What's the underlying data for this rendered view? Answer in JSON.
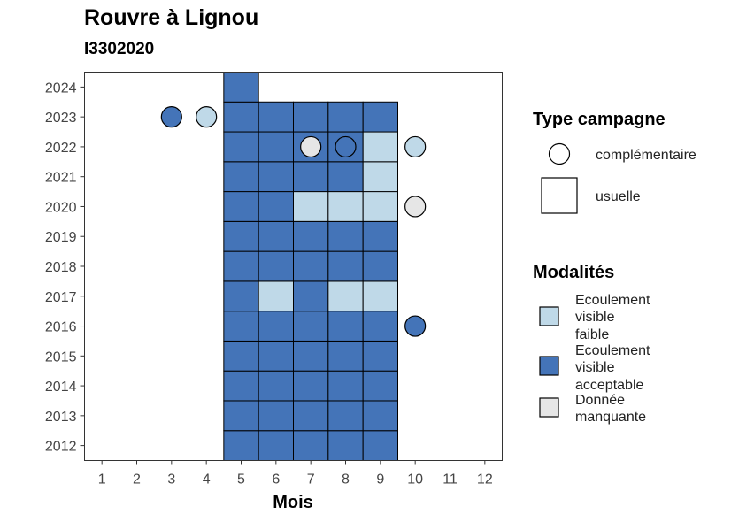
{
  "chart_data": {
    "type": "heatmap",
    "title": "Rouvre à Lignou",
    "subtitle": "I3302020",
    "xlabel": "Mois",
    "ylabel": "",
    "x_ticks": [
      1,
      2,
      3,
      4,
      5,
      6,
      7,
      8,
      9,
      10,
      11,
      12
    ],
    "y_ticks": [
      2012,
      2013,
      2014,
      2015,
      2016,
      2017,
      2018,
      2019,
      2020,
      2021,
      2022,
      2023,
      2024
    ],
    "xlim": [
      0.5,
      12.5
    ],
    "ylim": [
      2011.5,
      2024.5
    ],
    "colors": {
      "Ecoulement visible faible": "#bfd9e8",
      "Ecoulement visible acceptable": "#4474b8",
      "Donnée manquante": "#e6e6e6"
    },
    "legend_shape": {
      "title": "Type campagne",
      "entries": [
        "complémentaire",
        "usuelle"
      ]
    },
    "legend_fill": {
      "title": "Modalités",
      "entries": [
        {
          "label_lines": [
            "Ecoulement",
            "visible",
            "faible"
          ],
          "key": "Ecoulement visible faible"
        },
        {
          "label_lines": [
            "Ecoulement",
            "visible",
            "acceptable"
          ],
          "key": "Ecoulement visible acceptable"
        },
        {
          "label_lines": [
            "Donnée",
            "manquante"
          ],
          "key": "Donnée manquante"
        }
      ]
    },
    "tiles": [
      {
        "month": 5,
        "year": 2012,
        "value": "Ecoulement visible acceptable"
      },
      {
        "month": 6,
        "year": 2012,
        "value": "Ecoulement visible acceptable"
      },
      {
        "month": 7,
        "year": 2012,
        "value": "Ecoulement visible acceptable"
      },
      {
        "month": 8,
        "year": 2012,
        "value": "Ecoulement visible acceptable"
      },
      {
        "month": 9,
        "year": 2012,
        "value": "Ecoulement visible acceptable"
      },
      {
        "month": 5,
        "year": 2013,
        "value": "Ecoulement visible acceptable"
      },
      {
        "month": 6,
        "year": 2013,
        "value": "Ecoulement visible acceptable"
      },
      {
        "month": 7,
        "year": 2013,
        "value": "Ecoulement visible acceptable"
      },
      {
        "month": 8,
        "year": 2013,
        "value": "Ecoulement visible acceptable"
      },
      {
        "month": 9,
        "year": 2013,
        "value": "Ecoulement visible acceptable"
      },
      {
        "month": 5,
        "year": 2014,
        "value": "Ecoulement visible acceptable"
      },
      {
        "month": 6,
        "year": 2014,
        "value": "Ecoulement visible acceptable"
      },
      {
        "month": 7,
        "year": 2014,
        "value": "Ecoulement visible acceptable"
      },
      {
        "month": 8,
        "year": 2014,
        "value": "Ecoulement visible acceptable"
      },
      {
        "month": 9,
        "year": 2014,
        "value": "Ecoulement visible acceptable"
      },
      {
        "month": 5,
        "year": 2015,
        "value": "Ecoulement visible acceptable"
      },
      {
        "month": 6,
        "year": 2015,
        "value": "Ecoulement visible acceptable"
      },
      {
        "month": 7,
        "year": 2015,
        "value": "Ecoulement visible acceptable"
      },
      {
        "month": 8,
        "year": 2015,
        "value": "Ecoulement visible acceptable"
      },
      {
        "month": 9,
        "year": 2015,
        "value": "Ecoulement visible acceptable"
      },
      {
        "month": 5,
        "year": 2016,
        "value": "Ecoulement visible acceptable"
      },
      {
        "month": 6,
        "year": 2016,
        "value": "Ecoulement visible acceptable"
      },
      {
        "month": 7,
        "year": 2016,
        "value": "Ecoulement visible acceptable"
      },
      {
        "month": 8,
        "year": 2016,
        "value": "Ecoulement visible acceptable"
      },
      {
        "month": 9,
        "year": 2016,
        "value": "Ecoulement visible acceptable"
      },
      {
        "month": 5,
        "year": 2017,
        "value": "Ecoulement visible acceptable"
      },
      {
        "month": 6,
        "year": 2017,
        "value": "Ecoulement visible faible"
      },
      {
        "month": 7,
        "year": 2017,
        "value": "Ecoulement visible acceptable"
      },
      {
        "month": 8,
        "year": 2017,
        "value": "Ecoulement visible faible"
      },
      {
        "month": 9,
        "year": 2017,
        "value": "Ecoulement visible faible"
      },
      {
        "month": 5,
        "year": 2018,
        "value": "Ecoulement visible acceptable"
      },
      {
        "month": 6,
        "year": 2018,
        "value": "Ecoulement visible acceptable"
      },
      {
        "month": 7,
        "year": 2018,
        "value": "Ecoulement visible acceptable"
      },
      {
        "month": 8,
        "year": 2018,
        "value": "Ecoulement visible acceptable"
      },
      {
        "month": 9,
        "year": 2018,
        "value": "Ecoulement visible acceptable"
      },
      {
        "month": 5,
        "year": 2019,
        "value": "Ecoulement visible acceptable"
      },
      {
        "month": 6,
        "year": 2019,
        "value": "Ecoulement visible acceptable"
      },
      {
        "month": 7,
        "year": 2019,
        "value": "Ecoulement visible acceptable"
      },
      {
        "month": 8,
        "year": 2019,
        "value": "Ecoulement visible acceptable"
      },
      {
        "month": 9,
        "year": 2019,
        "value": "Ecoulement visible acceptable"
      },
      {
        "month": 5,
        "year": 2020,
        "value": "Ecoulement visible acceptable"
      },
      {
        "month": 6,
        "year": 2020,
        "value": "Ecoulement visible acceptable"
      },
      {
        "month": 7,
        "year": 2020,
        "value": "Ecoulement visible faible"
      },
      {
        "month": 8,
        "year": 2020,
        "value": "Ecoulement visible faible"
      },
      {
        "month": 9,
        "year": 2020,
        "value": "Ecoulement visible faible"
      },
      {
        "month": 5,
        "year": 2021,
        "value": "Ecoulement visible acceptable"
      },
      {
        "month": 6,
        "year": 2021,
        "value": "Ecoulement visible acceptable"
      },
      {
        "month": 7,
        "year": 2021,
        "value": "Ecoulement visible acceptable"
      },
      {
        "month": 8,
        "year": 2021,
        "value": "Ecoulement visible acceptable"
      },
      {
        "month": 9,
        "year": 2021,
        "value": "Ecoulement visible faible"
      },
      {
        "month": 5,
        "year": 2022,
        "value": "Ecoulement visible acceptable"
      },
      {
        "month": 6,
        "year": 2022,
        "value": "Ecoulement visible acceptable"
      },
      {
        "month": 7,
        "year": 2022,
        "value": "Ecoulement visible acceptable"
      },
      {
        "month": 8,
        "year": 2022,
        "value": "Ecoulement visible acceptable"
      },
      {
        "month": 9,
        "year": 2022,
        "value": "Ecoulement visible faible"
      },
      {
        "month": 5,
        "year": 2023,
        "value": "Ecoulement visible acceptable"
      },
      {
        "month": 6,
        "year": 2023,
        "value": "Ecoulement visible acceptable"
      },
      {
        "month": 7,
        "year": 2023,
        "value": "Ecoulement visible acceptable"
      },
      {
        "month": 8,
        "year": 2023,
        "value": "Ecoulement visible acceptable"
      },
      {
        "month": 9,
        "year": 2023,
        "value": "Ecoulement visible acceptable"
      },
      {
        "month": 5,
        "year": 2024,
        "value": "Ecoulement visible acceptable"
      }
    ],
    "points": [
      {
        "month": 3,
        "year": 2023,
        "value": "Ecoulement visible acceptable"
      },
      {
        "month": 4,
        "year": 2023,
        "value": "Ecoulement visible faible"
      },
      {
        "month": 7,
        "year": 2022,
        "value": "Donnée manquante"
      },
      {
        "month": 8,
        "year": 2022,
        "value": "Ecoulement visible acceptable"
      },
      {
        "month": 10,
        "year": 2022,
        "value": "Ecoulement visible faible"
      },
      {
        "month": 10,
        "year": 2020,
        "value": "Donnée manquante"
      },
      {
        "month": 10,
        "year": 2016,
        "value": "Ecoulement visible acceptable"
      }
    ]
  }
}
